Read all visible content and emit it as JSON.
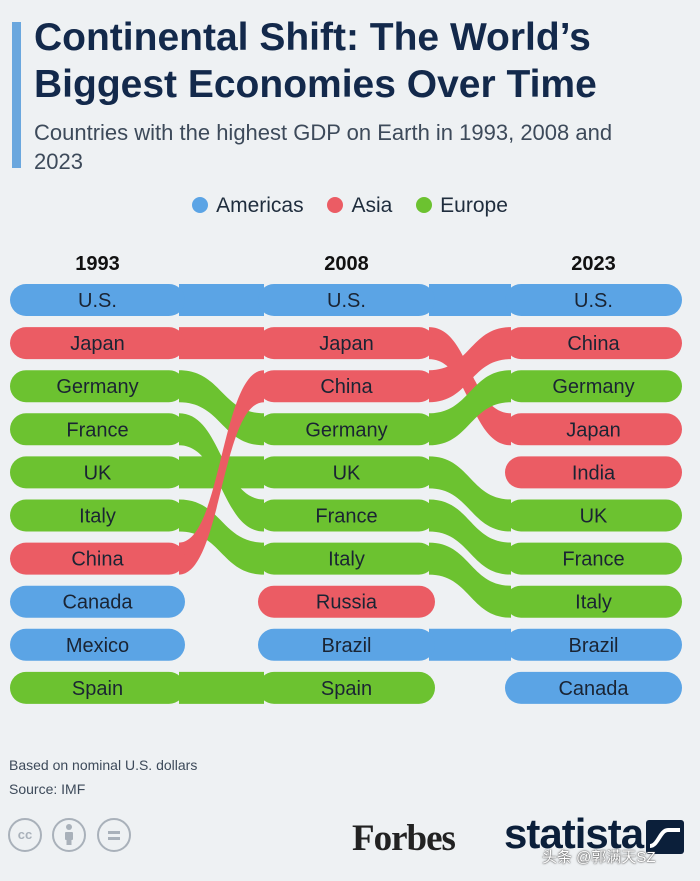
{
  "title": "Continental Shift: The World’s Biggest Economies Over Time",
  "subtitle": "Countries with the highest GDP on Earth in 1993, 2008 and 2023",
  "legend": [
    {
      "key": "americas",
      "label": "Americas",
      "color": "#5ba4e5"
    },
    {
      "key": "asia",
      "label": "Asia",
      "color": "#eb5c64"
    },
    {
      "key": "europe",
      "label": "Europe",
      "color": "#6cc230"
    }
  ],
  "chart_data": {
    "type": "bump",
    "title": "Continental Shift: The World’s Biggest Economies Over Time",
    "subtitle": "Countries with the highest GDP on Earth in 1993, 2008 and 2023",
    "years": [
      "1993",
      "2008",
      "2023"
    ],
    "rankings": {
      "1993": [
        "U.S.",
        "Japan",
        "Germany",
        "France",
        "UK",
        "Italy",
        "China",
        "Canada",
        "Mexico",
        "Spain"
      ],
      "2008": [
        "U.S.",
        "Japan",
        "China",
        "Germany",
        "UK",
        "France",
        "Italy",
        "Russia",
        "Brazil",
        "Spain"
      ],
      "2023": [
        "U.S.",
        "China",
        "Germany",
        "Japan",
        "India",
        "UK",
        "France",
        "Italy",
        "Brazil",
        "Canada"
      ]
    },
    "regions": {
      "U.S.": "americas",
      "Japan": "asia",
      "Germany": "europe",
      "France": "europe",
      "UK": "europe",
      "Italy": "europe",
      "China": "asia",
      "Canada": "americas",
      "Mexico": "americas",
      "Spain": "europe",
      "Russia": "asia",
      "Brazil": "americas",
      "India": "asia"
    },
    "legend_position": "top-center"
  },
  "footnote": {
    "basis": "Based on nominal U.S. dollars",
    "source": "Source: IMF"
  },
  "license_icons": [
    "cc",
    "by",
    "nd"
  ],
  "logos": {
    "forbes": "Forbes",
    "statista": "statista"
  },
  "watermark": "头条 @郭满天SZ"
}
